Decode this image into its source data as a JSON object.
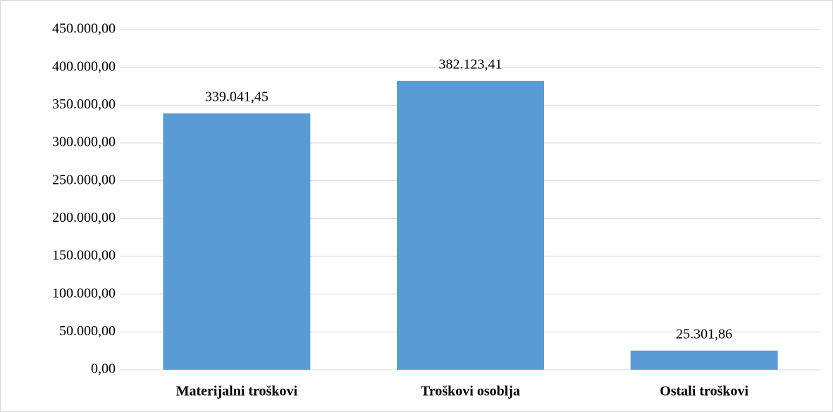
{
  "chart_data": {
    "type": "bar",
    "categories": [
      "Materijalni troškovi",
      "Troškovi osoblja",
      "Ostali troškovi"
    ],
    "values": [
      339041.45,
      382123.41,
      25301.86
    ],
    "value_labels": [
      "339.041,45",
      "382.123,41",
      "25.301,86"
    ],
    "color": "#5b9bd5",
    "ylim": [
      0,
      450000
    ],
    "yticks": [
      {
        "value": 0,
        "label": "0,00"
      },
      {
        "value": 50000,
        "label": "50.000,00"
      },
      {
        "value": 100000,
        "label": "100.000,00"
      },
      {
        "value": 150000,
        "label": "150.000,00"
      },
      {
        "value": 200000,
        "label": "200.000,00"
      },
      {
        "value": 250000,
        "label": "250.000,00"
      },
      {
        "value": 300000,
        "label": "300.000,00"
      },
      {
        "value": 350000,
        "label": "350.000,00"
      },
      {
        "value": 400000,
        "label": "400.000,00"
      },
      {
        "value": 450000,
        "label": "450.000,00"
      }
    ],
    "grid": true
  }
}
